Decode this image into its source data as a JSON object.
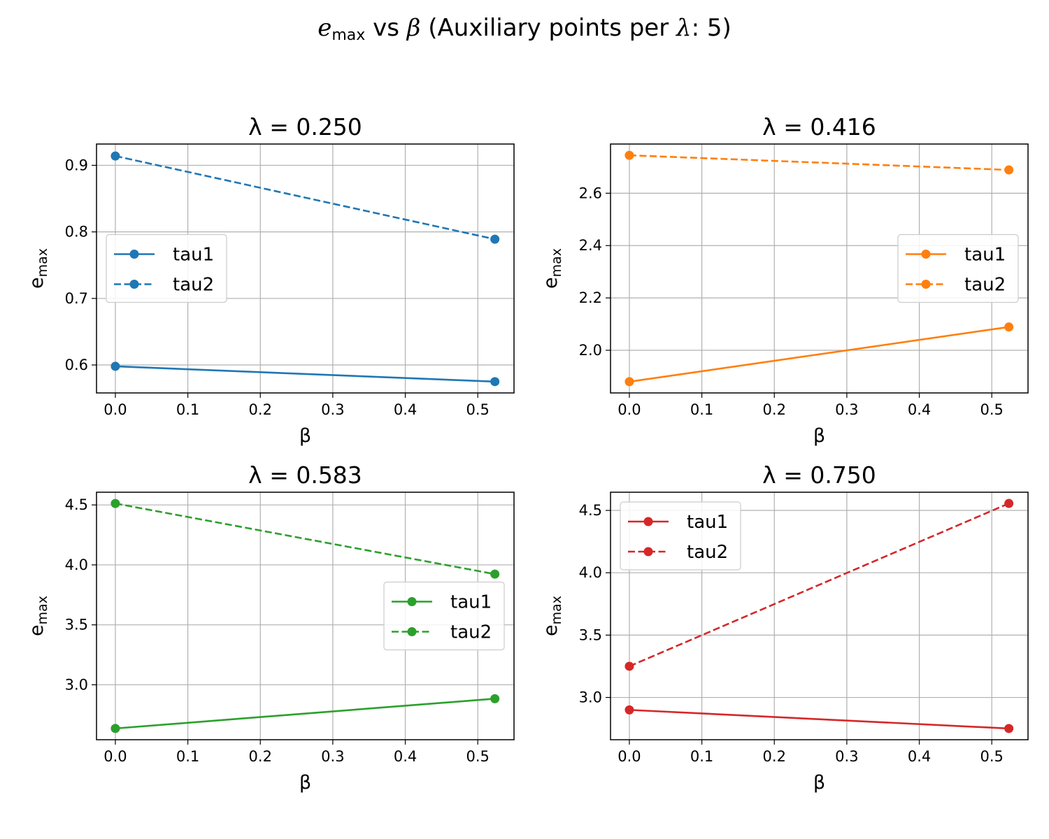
{
  "figure": {
    "suptitle": {
      "e": "e",
      "sub": "max",
      "vs": " vs ",
      "beta": "β",
      "paren_open": " (Auxiliary points per ",
      "lambda": "λ",
      "paren_close": ": 5)"
    }
  },
  "chart_data": [
    {
      "type": "line",
      "title": "λ = 0.250",
      "xlabel": "β",
      "ylabel_base": "e",
      "ylabel_sub": "max",
      "xlim": [
        -0.026,
        0.55
      ],
      "ylim": [
        0.558,
        0.932
      ],
      "xticks": [
        0.0,
        0.1,
        0.2,
        0.3,
        0.4,
        0.5
      ],
      "xtick_labels": [
        "0.0",
        "0.1",
        "0.2",
        "0.3",
        "0.4",
        "0.5"
      ],
      "yticks": [
        0.6,
        0.7,
        0.8,
        0.9
      ],
      "ytick_labels": [
        "0.6",
        "0.7",
        "0.8",
        "0.9"
      ],
      "grid": true,
      "legend_position": "center-left",
      "color": "#1f77b4",
      "x": [
        0.0,
        0.5236
      ],
      "series": [
        {
          "name": "tau1",
          "style": "solid",
          "values": [
            0.598,
            0.575
          ]
        },
        {
          "name": "tau2",
          "style": "dashed",
          "values": [
            0.914,
            0.789
          ]
        }
      ]
    },
    {
      "type": "line",
      "title": "λ = 0.416",
      "xlabel": "β",
      "ylabel_base": "e",
      "ylabel_sub": "max",
      "xlim": [
        -0.026,
        0.55
      ],
      "ylim": [
        1.837,
        2.788
      ],
      "xticks": [
        0.0,
        0.1,
        0.2,
        0.3,
        0.4,
        0.5
      ],
      "xtick_labels": [
        "0.0",
        "0.1",
        "0.2",
        "0.3",
        "0.4",
        "0.5"
      ],
      "yticks": [
        2.0,
        2.2,
        2.4,
        2.6
      ],
      "ytick_labels": [
        "2.0",
        "2.2",
        "2.4",
        "2.6"
      ],
      "grid": true,
      "legend_position": "center-right",
      "color": "#ff7f0e",
      "x": [
        0.0,
        0.5236
      ],
      "series": [
        {
          "name": "tau1",
          "style": "solid",
          "values": [
            1.88,
            2.089
          ]
        },
        {
          "name": "tau2",
          "style": "dashed",
          "values": [
            2.745,
            2.689
          ]
        }
      ]
    },
    {
      "type": "line",
      "title": "λ = 0.583",
      "xlabel": "β",
      "ylabel_base": "e",
      "ylabel_sub": "max",
      "xlim": [
        -0.026,
        0.55
      ],
      "ylim": [
        2.542,
        4.606
      ],
      "xticks": [
        0.0,
        0.1,
        0.2,
        0.3,
        0.4,
        0.5
      ],
      "xtick_labels": [
        "0.0",
        "0.1",
        "0.2",
        "0.3",
        "0.4",
        "0.5"
      ],
      "yticks": [
        3.0,
        3.5,
        4.0,
        4.5
      ],
      "ytick_labels": [
        "3.0",
        "3.5",
        "4.0",
        "4.5"
      ],
      "grid": true,
      "legend_position": "center-right",
      "color": "#2ca02c",
      "x": [
        0.0,
        0.5236
      ],
      "series": [
        {
          "name": "tau1",
          "style": "solid",
          "values": [
            2.636,
            2.884
          ]
        },
        {
          "name": "tau2",
          "style": "dashed",
          "values": [
            4.512,
            3.923
          ]
        }
      ]
    },
    {
      "type": "line",
      "title": "λ = 0.750",
      "xlabel": "β",
      "ylabel_base": "e",
      "ylabel_sub": "max",
      "xlim": [
        -0.026,
        0.55
      ],
      "ylim": [
        2.661,
        4.646
      ],
      "xticks": [
        0.0,
        0.1,
        0.2,
        0.3,
        0.4,
        0.5
      ],
      "xtick_labels": [
        "0.0",
        "0.1",
        "0.2",
        "0.3",
        "0.4",
        "0.5"
      ],
      "yticks": [
        3.0,
        3.5,
        4.0,
        4.5
      ],
      "ytick_labels": [
        "3.0",
        "3.5",
        "4.0",
        "4.5"
      ],
      "grid": true,
      "legend_position": "upper-left",
      "color": "#d62728",
      "x": [
        0.0,
        0.5236
      ],
      "series": [
        {
          "name": "tau1",
          "style": "solid",
          "values": [
            2.9,
            2.751
          ]
        },
        {
          "name": "tau2",
          "style": "dashed",
          "values": [
            3.25,
            4.556
          ]
        }
      ]
    }
  ]
}
